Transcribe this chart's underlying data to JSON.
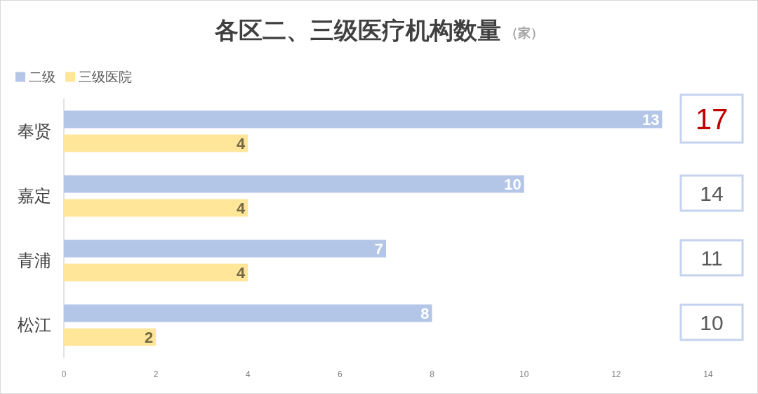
{
  "chart_data": {
    "type": "bar",
    "orientation": "horizontal",
    "title": "各区二、三级医疗机构数量",
    "subtitle": "（家）",
    "categories": [
      "奉贤",
      "嘉定",
      "青浦",
      "松江"
    ],
    "series": [
      {
        "name": "二级",
        "color": "#b4c6e7",
        "values": [
          13,
          10,
          7,
          8
        ]
      },
      {
        "name": "三级医院",
        "color": "#ffe699",
        "values": [
          4,
          4,
          4,
          2
        ]
      }
    ],
    "xlim": [
      0,
      14
    ],
    "xticks": [
      0,
      2,
      4,
      6,
      8,
      10,
      12,
      14
    ],
    "data_labels": true,
    "annotations": [
      "17",
      "14",
      "11",
      "10"
    ],
    "legend": "top left",
    "grid": false
  }
}
